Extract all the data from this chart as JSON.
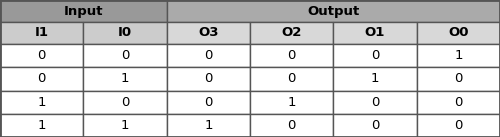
{
  "title_row": [
    "Input",
    "Output"
  ],
  "title_spans": [
    2,
    4
  ],
  "header_row": [
    "I1",
    "I0",
    "O3",
    "O2",
    "O1",
    "O0"
  ],
  "data_rows": [
    [
      "0",
      "0",
      "0",
      "0",
      "0",
      "1"
    ],
    [
      "0",
      "1",
      "0",
      "0",
      "1",
      "0"
    ],
    [
      "1",
      "0",
      "0",
      "1",
      "0",
      "0"
    ],
    [
      "1",
      "1",
      "1",
      "0",
      "0",
      "0"
    ]
  ],
  "title_bg_input": "#999999",
  "title_bg_output": "#aaaaaa",
  "header_bg_input": "#cccccc",
  "header_bg_output": "#d8d8d8",
  "data_bg": "#ffffff",
  "border_color": "#555555",
  "text_color": "#000000",
  "title_fontsize": 9.5,
  "header_fontsize": 9.5,
  "data_fontsize": 9.5,
  "figwidth": 5.0,
  "figheight": 1.37,
  "dpi": 100
}
